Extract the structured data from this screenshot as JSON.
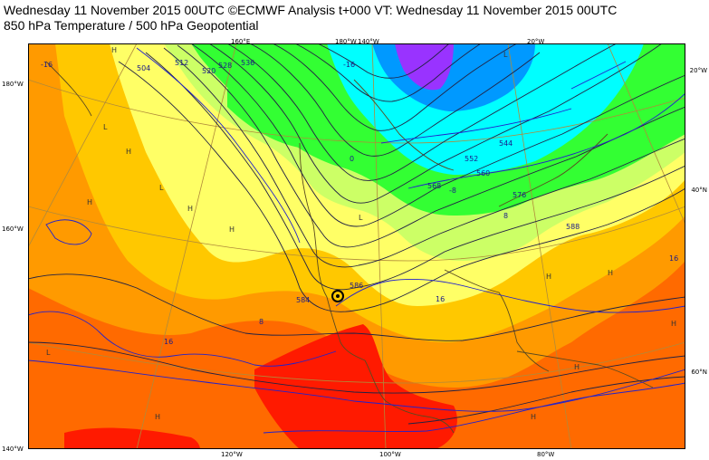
{
  "header": {
    "line1": "Wednesday 11 November 2015 00UTC ©ECMWF Analysis t+000 VT: Wednesday 11 November 2015 00UTC",
    "line2": "850 hPa Temperature / 500 hPa Geopotential"
  },
  "axes": {
    "left": [
      "180°W",
      "160°W",
      "140°W"
    ],
    "right": [
      "20°W",
      "40°N",
      "60°N"
    ],
    "bottom": [
      "120°W",
      "100°W",
      "80°W"
    ],
    "top": [
      "160°E",
      "180°W",
      "140°W",
      "20°W"
    ]
  },
  "geopotential_labels": [
    "504",
    "512",
    "520",
    "528",
    "536",
    "544",
    "552",
    "560",
    "568",
    "576",
    "584",
    "586",
    "588"
  ],
  "temperature_labels": [
    "16",
    "8",
    "0",
    "-8",
    "-16"
  ],
  "pressure_marks": [
    "H",
    "L"
  ],
  "colors": {
    "warm_red": "#ff0000",
    "orange": "#ff6a00",
    "light_orange": "#ff9a00",
    "yellow_orange": "#ffc800",
    "yellow": "#ffff66",
    "pale_green": "#ccff66",
    "green": "#33ff33",
    "cyan": "#00ffff",
    "blue": "#0066ff",
    "purple": "#9933ff",
    "contour_isotherm": "#2222cc",
    "contour_geopotential": "#222244"
  }
}
